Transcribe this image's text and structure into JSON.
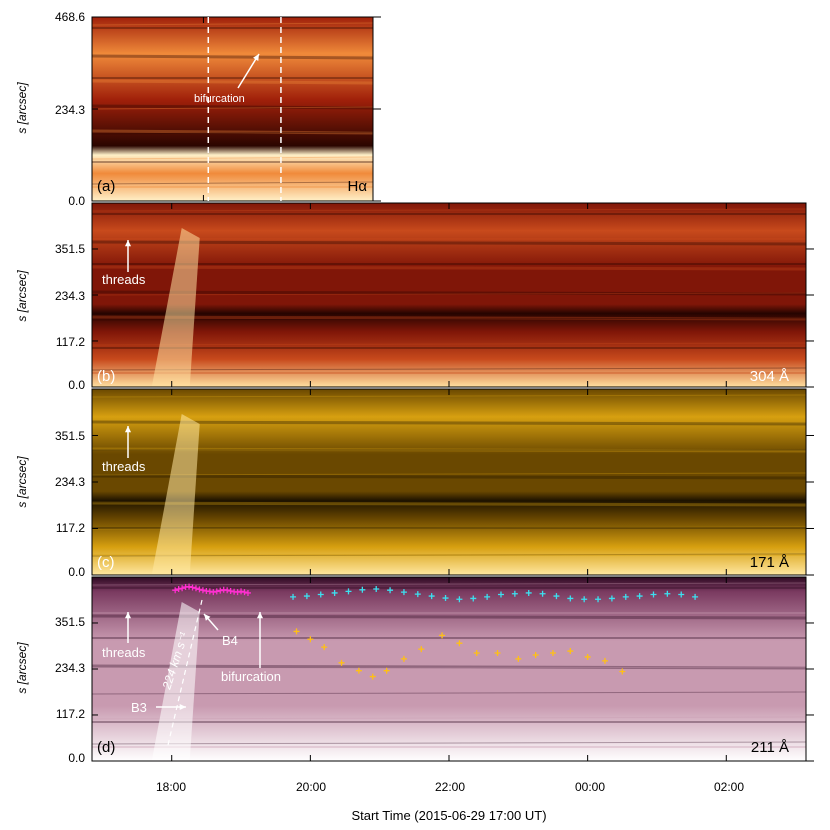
{
  "chart_data": {
    "type": "heatmap",
    "title": "",
    "xlabel": "Start Time (2015-06-29 17:00 UT)",
    "x_time_start_utc": "2015-06-29 17:00",
    "xticks": [
      "18:00",
      "20:00",
      "22:00",
      "00:00",
      "02:00"
    ],
    "xtick_hours_since_start": [
      1,
      3,
      5,
      7,
      9
    ],
    "xlim_hours_since_start": [
      -0.15,
      10.15
    ],
    "ylabel": "s [arcsec]",
    "panels": [
      {
        "id": "a",
        "label": "(a)",
        "channel": "Hα",
        "yticks": [
          "468.6",
          "234.3",
          "0.0"
        ],
        "ylim": [
          0,
          468.6
        ],
        "xlim_hours_since_start": [
          -0.15,
          2.75
        ],
        "colormap": [
          "#2a0500",
          "#a0200a",
          "#f08a3a",
          "#fff0c8"
        ],
        "dashed_lines_at_hours": [
          1.05,
          1.8
        ],
        "annotations": [
          {
            "text": "bifurcation",
            "arrow_to": {
              "t_hours": 1.72,
              "s": 389
            }
          }
        ]
      },
      {
        "id": "b",
        "label": "(b)",
        "channel": "304 Å",
        "yticks": [
          "351.5",
          "234.3",
          "117.2",
          "0.0"
        ],
        "ylim": [
          0,
          468.6
        ],
        "colormap": [
          "#250400",
          "#801608",
          "#c84a1c",
          "#ffe0a0"
        ],
        "annotations": [
          {
            "text": "threads"
          }
        ]
      },
      {
        "id": "c",
        "label": "(c)",
        "channel": "171 Å",
        "yticks": [
          "351.5",
          "234.3",
          "117.2",
          "0.0"
        ],
        "ylim": [
          0,
          468.6
        ],
        "colormap": [
          "#1e1300",
          "#6a4800",
          "#d7a010",
          "#ffe7a0"
        ],
        "annotations": [
          {
            "text": "threads"
          }
        ]
      },
      {
        "id": "d",
        "label": "(d)",
        "channel": "211 Å",
        "yticks": [
          "351.5",
          "234.3",
          "117.2",
          "0.0"
        ],
        "ylim": [
          0,
          468.6
        ],
        "colormap": [
          "#2e0a22",
          "#7a3a60",
          "#c89ab0",
          "#ffffff"
        ],
        "annotations": [
          {
            "text": "threads"
          },
          {
            "text": "bifurcation"
          },
          {
            "text": "B3"
          },
          {
            "text": "B4"
          },
          {
            "text": "224 km s⁻¹"
          }
        ]
      }
    ],
    "series": [
      {
        "color": "#ff2fd0",
        "marker": "+",
        "t_hours": [
          1.05,
          1.1,
          1.15,
          1.2,
          1.25,
          1.3,
          1.35,
          1.4,
          1.45,
          1.5,
          1.55,
          1.6,
          1.65,
          1.7,
          1.75,
          1.8,
          1.85,
          1.9,
          1.95,
          2.0,
          2.05,
          2.1
        ],
        "s": [
          435,
          438,
          440,
          443,
          444,
          442,
          440,
          437,
          435,
          433,
          432,
          430,
          432,
          434,
          436,
          435,
          433,
          431,
          430,
          432,
          430,
          428
        ]
      },
      {
        "color": "#3ce0f0",
        "marker": "+",
        "t_hours": [
          2.75,
          2.95,
          3.15,
          3.35,
          3.55,
          3.75,
          3.95,
          4.15,
          4.35,
          4.55,
          4.75,
          4.95,
          5.15,
          5.35,
          5.55,
          5.75,
          5.95,
          6.15,
          6.35,
          6.55,
          6.75,
          6.95,
          7.15,
          7.35,
          7.55,
          7.75,
          7.95,
          8.15,
          8.35,
          8.55
        ],
        "s": [
          418,
          420,
          424,
          428,
          432,
          436,
          438,
          435,
          430,
          425,
          420,
          415,
          412,
          414,
          418,
          424,
          426,
          428,
          426,
          420,
          414,
          412,
          412,
          414,
          418,
          420,
          424,
          426,
          424,
          418
        ]
      },
      {
        "color": "#ffc014",
        "marker": "+",
        "t_hours": [
          2.8,
          3.0,
          3.2,
          3.45,
          3.7,
          3.9,
          4.1,
          4.35,
          4.6,
          4.9,
          5.15,
          5.4,
          5.7,
          6.0,
          6.25,
          6.5,
          6.75,
          7.0,
          7.25,
          7.5
        ],
        "s": [
          330,
          310,
          290,
          250,
          230,
          215,
          230,
          260,
          285,
          320,
          300,
          275,
          275,
          260,
          270,
          275,
          280,
          265,
          255,
          228
        ]
      }
    ]
  }
}
